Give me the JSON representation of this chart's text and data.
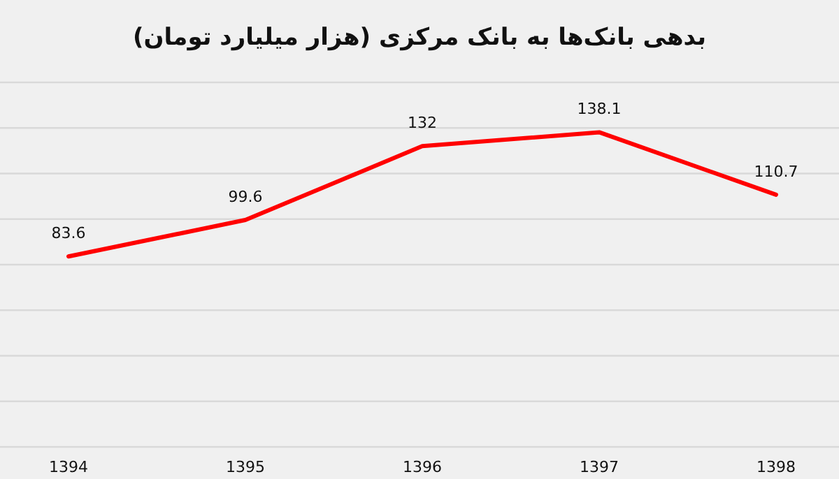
{
  "chart_data": {
    "type": "line",
    "title": "بدهی بانک‌ها به بانک مرکزی (هزار میلیارد تومان)",
    "categories": [
      "1394",
      "1395",
      "1396",
      "1397",
      "1398"
    ],
    "series": [
      {
        "color": "#ff0000",
        "values": [
          83.6,
          99.6,
          132,
          138.1,
          110.7
        ]
      }
    ],
    "ylim": [
      0,
      160
    ],
    "yticks": [
      {
        "value": 0,
        "label": null
      },
      {
        "value": 20,
        "label": null
      },
      {
        "value": 40,
        "label": null
      },
      {
        "value": 60,
        "label": null
      },
      {
        "value": 80,
        "label": null
      },
      {
        "value": 100,
        "label": null
      },
      {
        "value": 120,
        "label": null
      },
      {
        "value": 140,
        "label": null
      },
      {
        "value": 160,
        "label": null
      }
    ],
    "grid": "y",
    "tick_labels": "x",
    "data_labels": true
  }
}
